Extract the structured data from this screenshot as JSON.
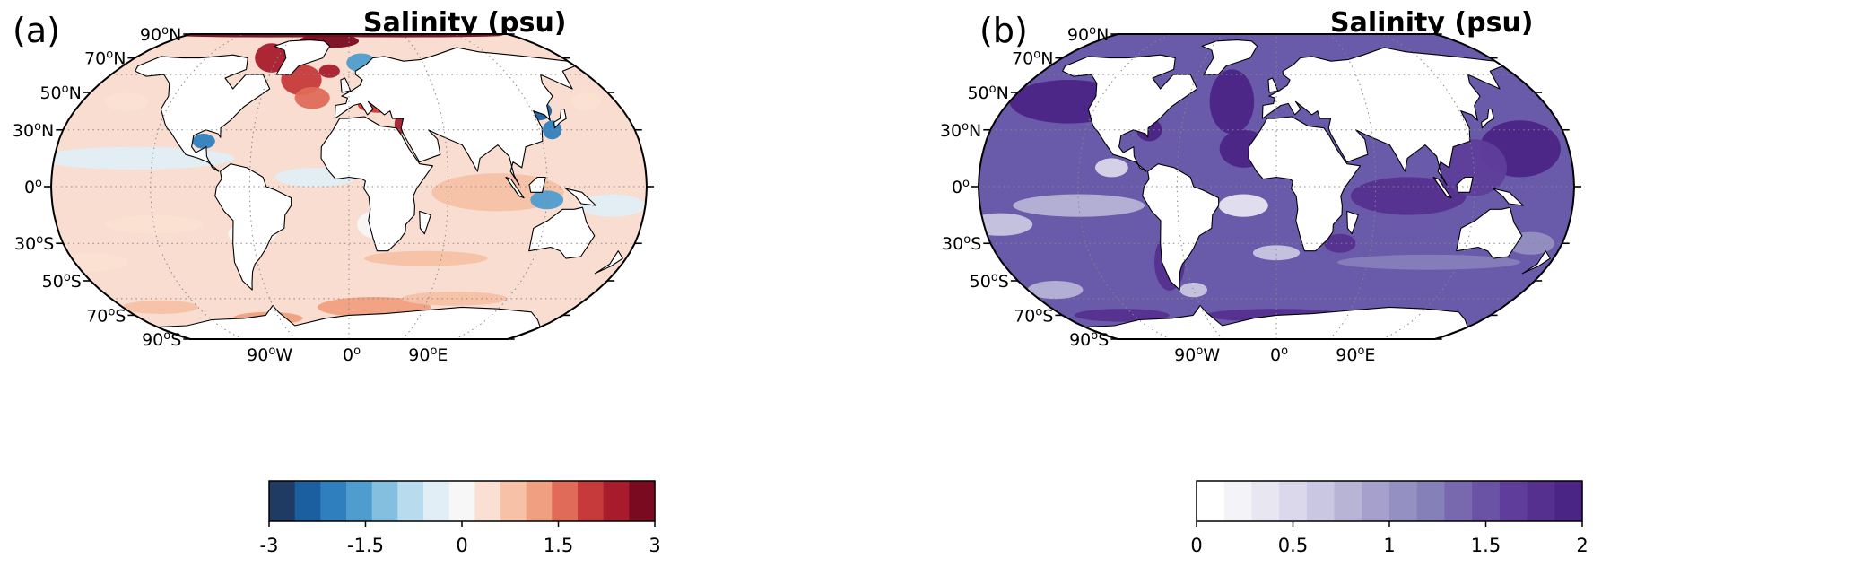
{
  "panels": [
    {
      "label": "(a)",
      "title": "Salinity (psu)",
      "lat_labels": [
        "90oN",
        "70oN",
        "50oN",
        "30oN",
        "0o",
        "30oS",
        "50oS",
        "70oS",
        "90oS"
      ],
      "lon_labels": [
        "90oW",
        "0o",
        "90oE"
      ],
      "colorbar": {
        "ticks": [
          "-3",
          "-1.5",
          "0",
          "1.5",
          "3"
        ],
        "range": [
          -3,
          3
        ],
        "colors": [
          "#1f3b63",
          "#1c5fa0",
          "#2f7fbf",
          "#4f9dcf",
          "#85bfe0",
          "#b9dbee",
          "#e1eef6",
          "#f7f7f7",
          "#fae0d2",
          "#f6c1a6",
          "#f09f80",
          "#df6b58",
          "#c73a3b",
          "#a81b2c",
          "#7a0a1f"
        ]
      },
      "colormap": "diverging red-blue",
      "dominant_ocean_color": "#f8ddd0"
    },
    {
      "label": "(b)",
      "title": "Salinity (psu)",
      "lat_labels": [
        "90oN",
        "70oN",
        "50oN",
        "30oN",
        "0o",
        "30oS",
        "50oS",
        "70oS",
        "90oS"
      ],
      "lon_labels": [
        "90oW",
        "0o",
        "90oE"
      ],
      "colorbar": {
        "ticks": [
          "0",
          "0.5",
          "1",
          "1.5",
          "2"
        ],
        "range": [
          0,
          2
        ],
        "colors": [
          "#ffffff",
          "#f4f3f8",
          "#e7e6f1",
          "#dad8ea",
          "#c9c7e1",
          "#b7b4d6",
          "#a5a1cc",
          "#9590c2",
          "#8680b9",
          "#7869ae",
          "#6a53a4",
          "#5e3e9a",
          "#55308f",
          "#4b2585"
        ]
      },
      "colormap": "sequential purple",
      "dominant_ocean_color": "#6a5aaa"
    }
  ]
}
